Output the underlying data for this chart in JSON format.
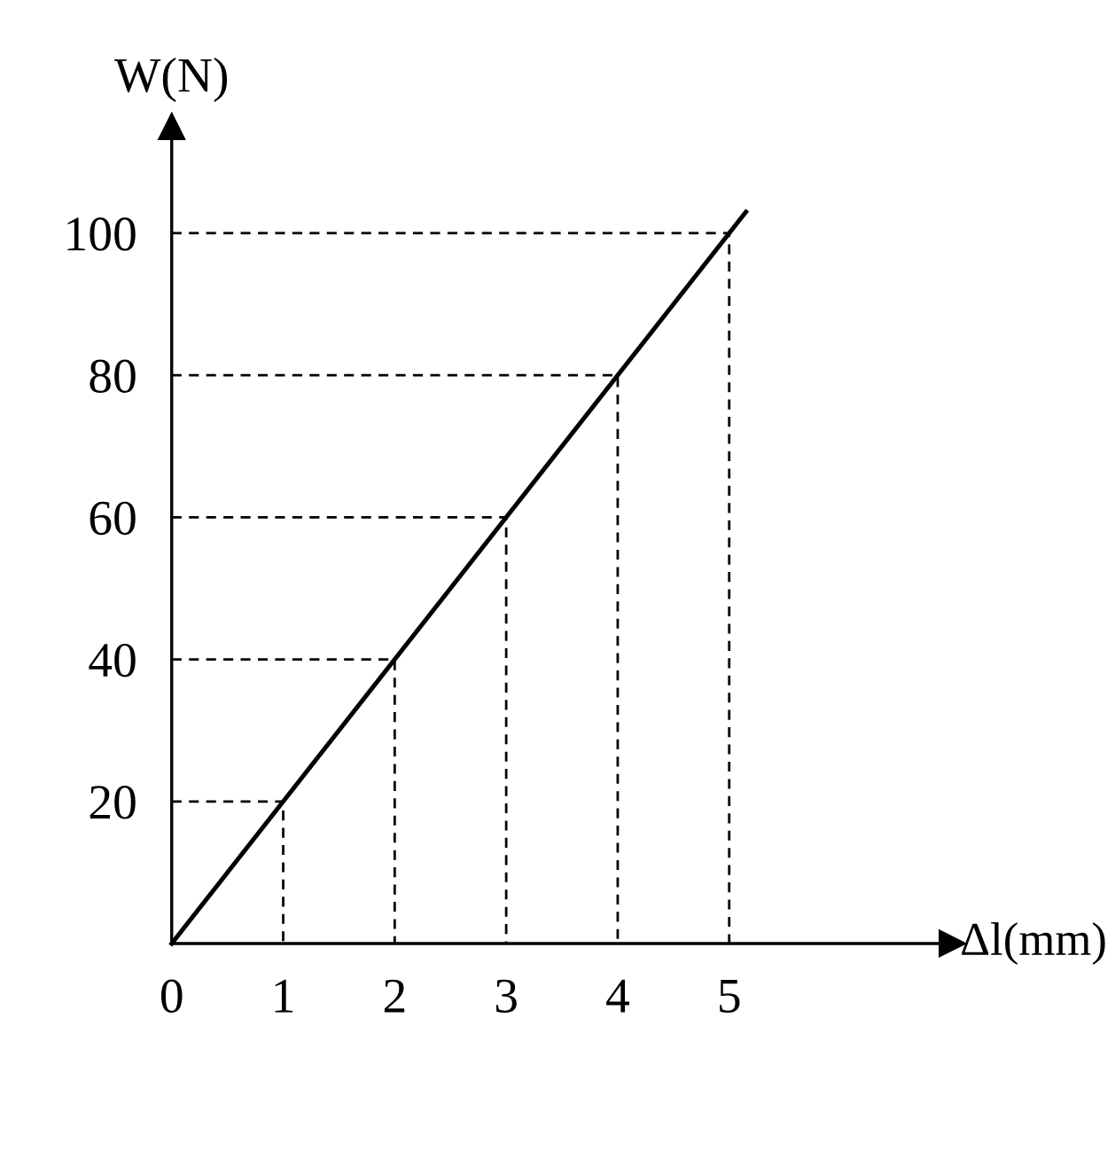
{
  "chart_data": {
    "type": "line",
    "xlabel": "Δl(mm)",
    "ylabel": "W(N)",
    "xlim": [
      0,
      7
    ],
    "ylim": [
      0,
      115
    ],
    "xticks": [
      0,
      1,
      2,
      3,
      4,
      5
    ],
    "yticks": [
      20,
      40,
      60,
      80,
      100
    ],
    "grid": false,
    "legend": false,
    "marker": "none",
    "series": [
      {
        "color": "#000000",
        "x": [
          0,
          5.15
        ],
        "values": [
          0,
          103
        ]
      },
      {
        "color": "#000000",
        "line_style": "dashed",
        "x": [
          0,
          1,
          1
        ],
        "values": [
          20,
          20,
          0
        ]
      },
      {
        "color": "#000000",
        "line_style": "dashed",
        "x": [
          0,
          2,
          2
        ],
        "values": [
          40,
          40,
          0
        ]
      },
      {
        "color": "#000000",
        "line_style": "dashed",
        "x": [
          0,
          3,
          3
        ],
        "values": [
          60,
          60,
          0
        ]
      },
      {
        "color": "#000000",
        "line_style": "dashed",
        "x": [
          0,
          4,
          4
        ],
        "values": [
          80,
          80,
          0
        ]
      },
      {
        "color": "#000000",
        "line_style": "dashed",
        "x": [
          0,
          5,
          5
        ],
        "values": [
          100,
          100,
          0
        ]
      }
    ]
  }
}
